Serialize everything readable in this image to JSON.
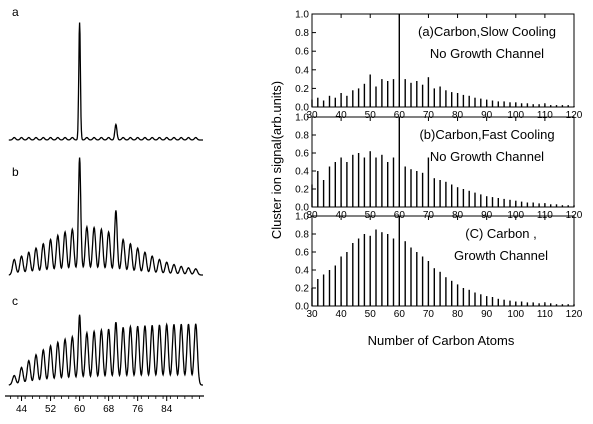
{
  "left_panel": {
    "trace_labels": [
      "a",
      "b",
      "c"
    ],
    "x_ticks": [
      44,
      52,
      60,
      68,
      76,
      84
    ],
    "x_range": [
      40,
      94
    ]
  },
  "chart_data": [
    {
      "type": "bar",
      "title": "(a)Carbon,Slow Cooling",
      "subtitle": "No Growth Channel",
      "xlabel": "Number of Carbon Atoms",
      "ylabel": "Cluster ion signal(arb.units)",
      "xlim": [
        30,
        120
      ],
      "ylim": [
        0,
        1.0
      ],
      "x_ticks": [
        30,
        40,
        50,
        60,
        70,
        80,
        90,
        100,
        110,
        120
      ],
      "y_ticks": [
        "0.0",
        "0.2",
        "0.4",
        "0.6",
        "0.8",
        "1.0"
      ],
      "x": [
        30,
        32,
        34,
        36,
        38,
        40,
        42,
        44,
        46,
        48,
        50,
        52,
        54,
        56,
        58,
        60,
        62,
        64,
        66,
        68,
        70,
        72,
        74,
        76,
        78,
        80,
        82,
        84,
        86,
        88,
        90,
        92,
        94,
        96,
        98,
        100,
        102,
        104,
        106,
        108,
        110,
        112,
        114,
        116,
        118,
        120
      ],
      "values": [
        0.08,
        0.1,
        0.07,
        0.12,
        0.1,
        0.15,
        0.12,
        0.18,
        0.2,
        0.25,
        0.35,
        0.22,
        0.3,
        0.28,
        0.3,
        1.0,
        0.3,
        0.26,
        0.28,
        0.24,
        0.32,
        0.2,
        0.22,
        0.18,
        0.16,
        0.15,
        0.13,
        0.12,
        0.1,
        0.09,
        0.08,
        0.07,
        0.06,
        0.06,
        0.05,
        0.05,
        0.04,
        0.04,
        0.03,
        0.03,
        0.03,
        0.02,
        0.02,
        0.02,
        0.02,
        0.01
      ]
    },
    {
      "type": "bar",
      "title": "(b)Carbon,Fast Cooling",
      "subtitle": "No Growth Channel",
      "xlim": [
        30,
        120
      ],
      "ylim": [
        0,
        1.0
      ],
      "x_ticks": [
        30,
        40,
        50,
        60,
        70,
        80,
        90,
        100,
        110,
        120
      ],
      "y_ticks": [
        "0.0",
        "0.2",
        "0.4",
        "0.6",
        "0.8",
        "1.0"
      ],
      "x": [
        30,
        32,
        34,
        36,
        38,
        40,
        42,
        44,
        46,
        48,
        50,
        52,
        54,
        56,
        58,
        60,
        62,
        64,
        66,
        68,
        70,
        72,
        74,
        76,
        78,
        80,
        82,
        84,
        86,
        88,
        90,
        92,
        94,
        96,
        98,
        100,
        102,
        104,
        106,
        108,
        110,
        112,
        114,
        116,
        118,
        120
      ],
      "values": [
        0.25,
        0.4,
        0.3,
        0.45,
        0.5,
        0.55,
        0.5,
        0.58,
        0.6,
        0.55,
        0.62,
        0.55,
        0.58,
        0.5,
        0.55,
        1.0,
        0.45,
        0.42,
        0.4,
        0.38,
        0.55,
        0.32,
        0.3,
        0.28,
        0.25,
        0.22,
        0.2,
        0.18,
        0.16,
        0.14,
        0.12,
        0.11,
        0.1,
        0.09,
        0.08,
        0.07,
        0.06,
        0.05,
        0.05,
        0.04,
        0.04,
        0.03,
        0.03,
        0.02,
        0.02,
        0.02
      ]
    },
    {
      "type": "bar",
      "title": "(C) Carbon ,",
      "subtitle": "Growth Channel",
      "xlim": [
        30,
        120
      ],
      "ylim": [
        0,
        1.0
      ],
      "x_ticks": [
        30,
        40,
        50,
        60,
        70,
        80,
        90,
        100,
        110,
        120
      ],
      "y_ticks": [
        "0.0",
        "0.2",
        "0.4",
        "0.6",
        "0.8",
        "1.0"
      ],
      "x": [
        30,
        32,
        34,
        36,
        38,
        40,
        42,
        44,
        46,
        48,
        50,
        52,
        54,
        56,
        58,
        60,
        62,
        64,
        66,
        68,
        70,
        72,
        74,
        76,
        78,
        80,
        82,
        84,
        86,
        88,
        90,
        92,
        94,
        96,
        98,
        100,
        102,
        104,
        106,
        108,
        110,
        112,
        114,
        116,
        118,
        120
      ],
      "values": [
        0.2,
        0.3,
        0.35,
        0.4,
        0.45,
        0.55,
        0.6,
        0.7,
        0.75,
        0.8,
        0.78,
        0.85,
        0.82,
        0.8,
        0.75,
        1.0,
        0.72,
        0.65,
        0.6,
        0.55,
        0.5,
        0.42,
        0.38,
        0.32,
        0.28,
        0.24,
        0.2,
        0.18,
        0.15,
        0.13,
        0.11,
        0.1,
        0.08,
        0.07,
        0.06,
        0.05,
        0.05,
        0.04,
        0.04,
        0.03,
        0.03,
        0.03,
        0.02,
        0.02,
        0.02,
        0.02
      ]
    }
  ]
}
